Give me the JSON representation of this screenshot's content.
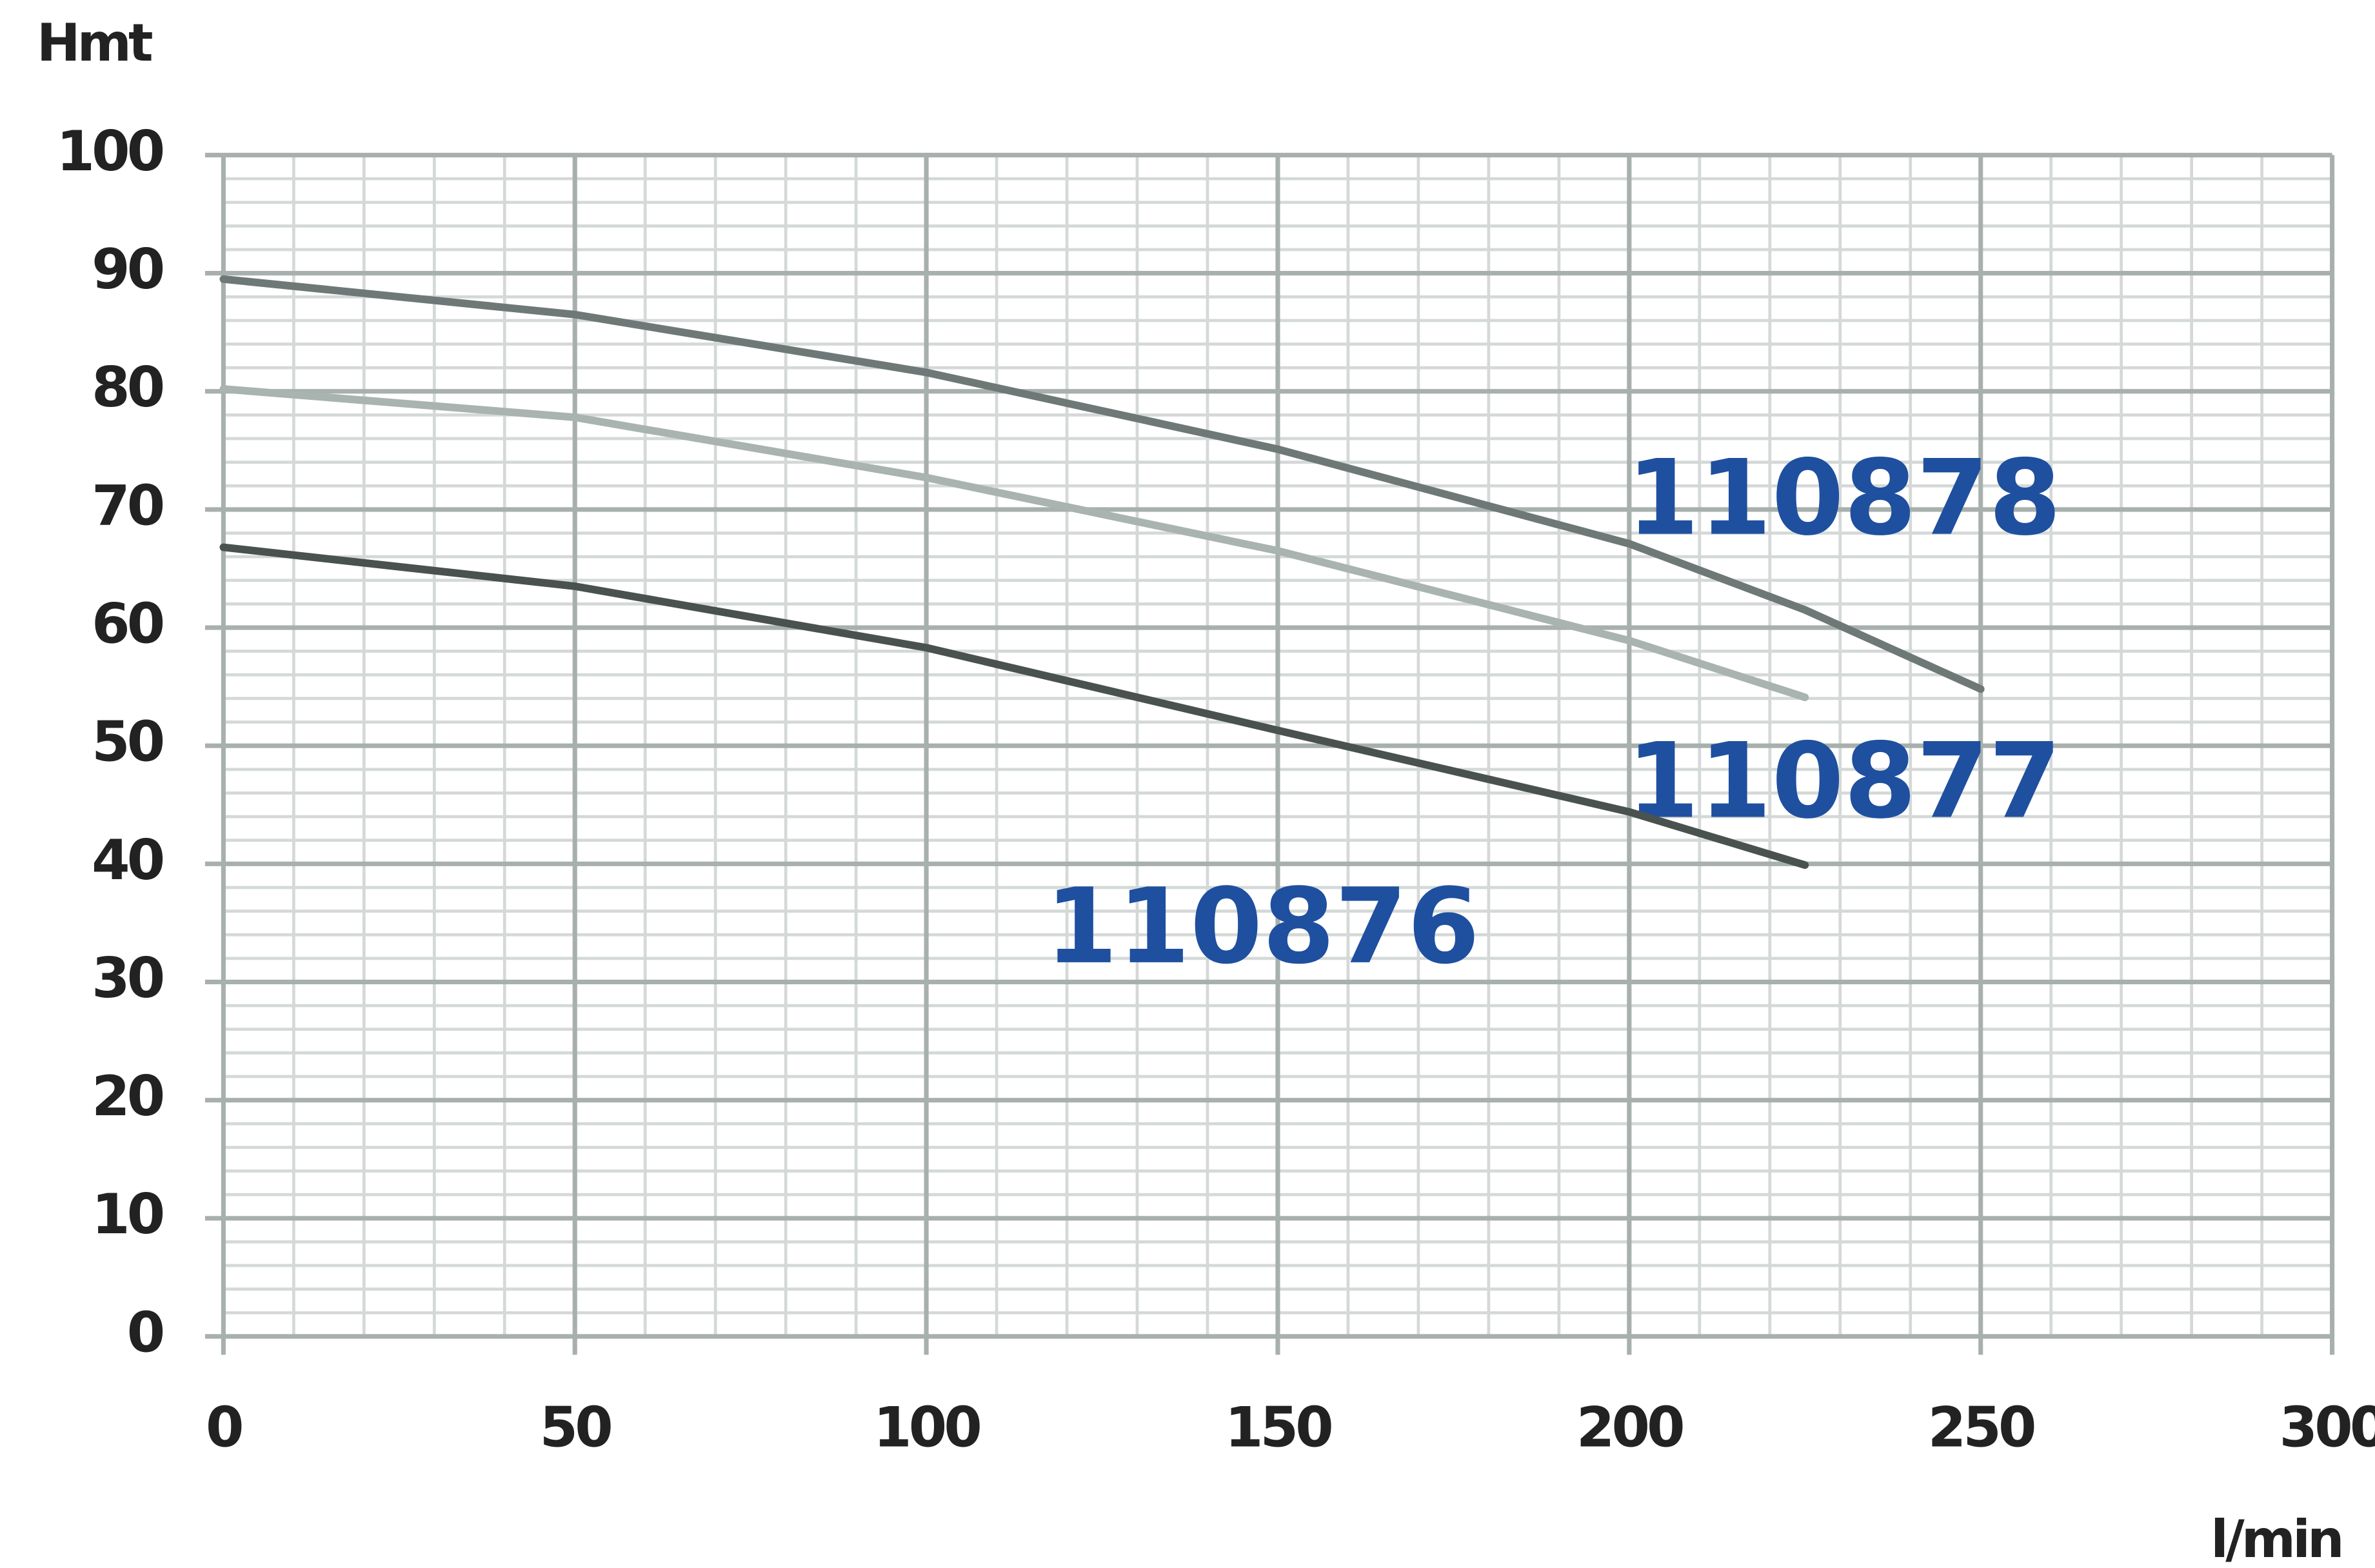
{
  "chart_data": {
    "type": "line",
    "y_label": "Hmt",
    "x_label": "l/min",
    "x": [
      0,
      50,
      100,
      150,
      200,
      225,
      250
    ],
    "series": [
      {
        "name": "110878",
        "color": "#6e7977",
        "values": [
          89.5,
          86.5,
          81.6,
          75.1,
          67.1,
          61.5,
          54.8
        ]
      },
      {
        "name": "110877",
        "color": "#a9b3b0",
        "values": [
          80.2,
          77.8,
          72.7,
          66.5,
          58.9,
          54.1,
          null
        ]
      },
      {
        "name": "110876",
        "color": "#4a5250",
        "values": [
          66.8,
          63.5,
          58.3,
          51.3,
          44.4,
          39.9,
          null
        ]
      }
    ],
    "xlim": [
      0,
      300
    ],
    "ylim": [
      0,
      100
    ],
    "xticks": [
      0,
      50,
      100,
      150,
      200,
      250,
      300
    ],
    "yticks": [
      0,
      10,
      20,
      30,
      40,
      50,
      60,
      70,
      80,
      90,
      100
    ],
    "grid": true
  }
}
